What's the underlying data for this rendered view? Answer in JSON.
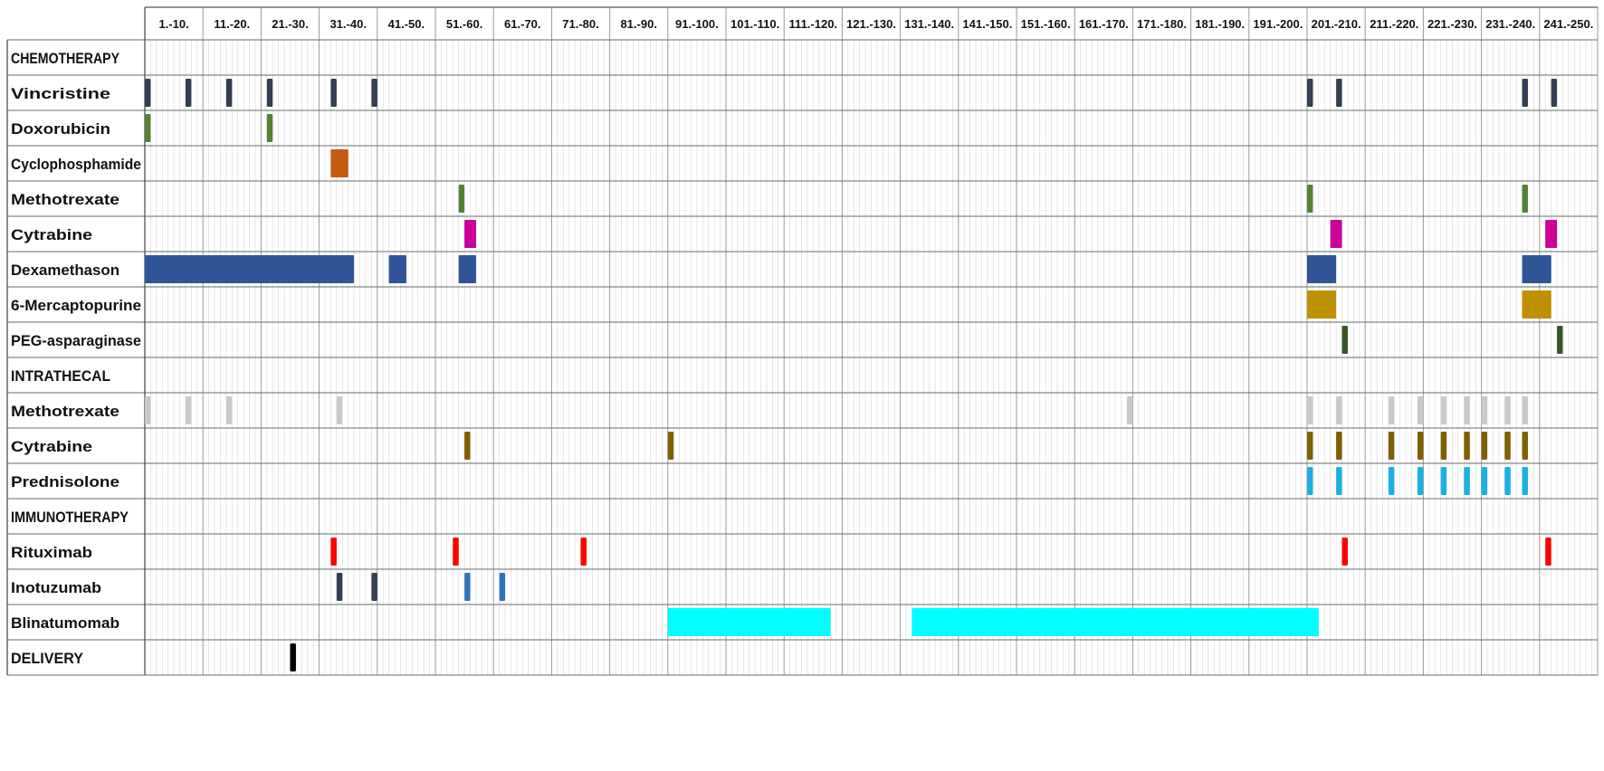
{
  "chart_data": {
    "type": "timeline",
    "x_unit": "day",
    "x_range": [
      1,
      250
    ],
    "periods": [
      "1.-10.",
      "11.-20.",
      "21.-30.",
      "31.-40.",
      "41.-50.",
      "51.-60.",
      "61.-70.",
      "71.-80.",
      "81.-90.",
      "91.-100.",
      "101.-110.",
      "111.-120.",
      "121.-130.",
      "131.-140.",
      "141.-150.",
      "151.-160.",
      "161.-170.",
      "171.-180.",
      "181.-190.",
      "191.-200.",
      "201.-210.",
      "211.-220.",
      "221.-230.",
      "231.-240.",
      "241.-250."
    ],
    "rows": [
      {
        "label": "CHEMOTHERAPY",
        "header": true,
        "color": "#000000",
        "segments": []
      },
      {
        "label": "Vincristine",
        "color": "#333f50",
        "segments": [
          [
            1,
            1
          ],
          [
            8,
            8
          ],
          [
            15,
            15
          ],
          [
            22,
            22
          ],
          [
            33,
            33
          ],
          [
            40,
            40
          ],
          [
            201,
            201
          ],
          [
            206,
            206
          ],
          [
            238,
            238
          ],
          [
            243,
            243
          ]
        ]
      },
      {
        "label": "Doxorubicin",
        "color": "#548235",
        "segments": [
          [
            1,
            1
          ],
          [
            22,
            22
          ]
        ]
      },
      {
        "label": "Cyclophosphamide",
        "color": "#c55a11",
        "segments": [
          [
            33,
            35
          ]
        ]
      },
      {
        "label": "Methotrexate",
        "color": "#548235",
        "segments": [
          [
            55,
            55
          ],
          [
            201,
            201
          ],
          [
            238,
            238
          ]
        ]
      },
      {
        "label": "Cytrabine",
        "color": "#cc0099",
        "segments": [
          [
            56,
            57
          ],
          [
            205,
            206
          ],
          [
            242,
            243
          ]
        ]
      },
      {
        "label": "Dexamethason",
        "color": "#2f5597",
        "segments": [
          [
            1,
            36
          ],
          [
            43,
            45
          ],
          [
            55,
            57
          ],
          [
            201,
            205
          ],
          [
            238,
            242
          ]
        ]
      },
      {
        "label": "6-Mercaptopurine",
        "color": "#bf9000",
        "segments": [
          [
            201,
            205
          ],
          [
            238,
            242
          ]
        ]
      },
      {
        "label": "PEG-asparaginase",
        "color": "#375623",
        "segments": [
          [
            207,
            207
          ],
          [
            244,
            244
          ]
        ]
      },
      {
        "label": "INTRATHECAL",
        "header": true,
        "color": "#000000",
        "segments": []
      },
      {
        "label": "Methotrexate",
        "color": "#c9c9c9",
        "segments": [
          [
            1,
            1
          ],
          [
            8,
            8
          ],
          [
            15,
            15
          ],
          [
            34,
            34
          ],
          [
            170,
            170
          ],
          [
            201,
            201
          ],
          [
            206,
            206
          ],
          [
            215,
            215
          ],
          [
            220,
            220
          ],
          [
            224,
            224
          ],
          [
            228,
            228
          ],
          [
            231,
            231
          ],
          [
            235,
            235
          ],
          [
            238,
            238
          ]
        ]
      },
      {
        "label": "Cytrabine",
        "color": "#7f6000",
        "segments": [
          [
            56,
            56
          ],
          [
            91,
            91
          ],
          [
            201,
            201
          ],
          [
            206,
            206
          ],
          [
            215,
            215
          ],
          [
            220,
            220
          ],
          [
            224,
            224
          ],
          [
            228,
            228
          ],
          [
            231,
            231
          ],
          [
            235,
            235
          ],
          [
            238,
            238
          ]
        ]
      },
      {
        "label": "Prednisolone",
        "color": "#1ab0e6",
        "segments": [
          [
            201,
            201
          ],
          [
            206,
            206
          ],
          [
            215,
            215
          ],
          [
            220,
            220
          ],
          [
            224,
            224
          ],
          [
            228,
            228
          ],
          [
            231,
            231
          ],
          [
            235,
            235
          ],
          [
            238,
            238
          ]
        ]
      },
      {
        "label": "IMMUNOTHERAPY",
        "header": true,
        "color": "#000000",
        "segments": []
      },
      {
        "label": "Rituximab",
        "color": "#ff0000",
        "segments": [
          [
            33,
            33
          ],
          [
            54,
            54
          ],
          [
            76,
            76
          ],
          [
            207,
            207
          ],
          [
            242,
            242
          ]
        ]
      },
      {
        "label": "Inotuzumab",
        "color": "#333f50",
        "segments": [
          [
            34,
            34
          ],
          [
            40,
            40
          ],
          [
            56,
            56
          ],
          [
            62,
            62
          ]
        ],
        "alt_colors": {
          "2": "#2e75b6",
          "3": "#2e75b6"
        }
      },
      {
        "label": "Blinatumomab",
        "color": "#00ffff",
        "segments": [
          [
            91,
            118
          ],
          [
            133,
            202
          ]
        ]
      },
      {
        "label": "DELIVERY",
        "header": true,
        "color": "#000000",
        "segments": [
          [
            26,
            26
          ]
        ]
      }
    ]
  }
}
